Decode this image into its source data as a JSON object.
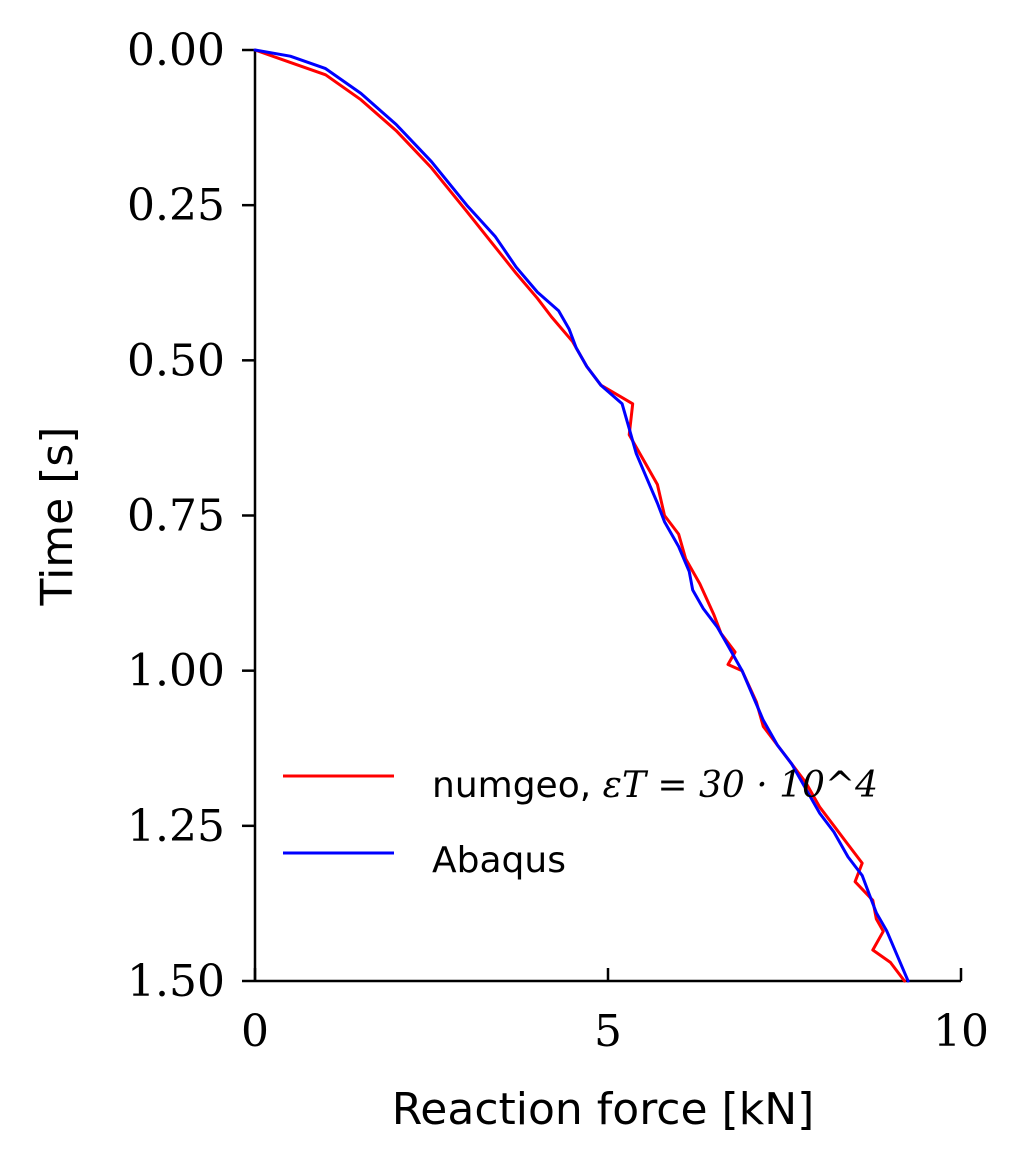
{
  "chart_data": {
    "type": "line",
    "xlabel": "Reaction force [kN]",
    "ylabel": "Time [s]",
    "xlim": [
      0,
      10
    ],
    "ylim": [
      0,
      1.5
    ],
    "y_inverted": true,
    "grid": false,
    "legend_position": "lower-left",
    "x_ticks": [
      "0",
      "5",
      "10"
    ],
    "y_ticks": [
      "0.00",
      "0.25",
      "0.50",
      "0.75",
      "1.00",
      "1.25",
      "1.50"
    ],
    "x_tick_values": [
      0,
      5,
      10
    ],
    "y_tick_values": [
      0,
      0.25,
      0.5,
      0.75,
      1.0,
      1.25,
      1.5
    ],
    "series": [
      {
        "name": "numgeo, εT = 30 · 10^4",
        "name_prefix": "numgeo, ",
        "name_math": "εT = 30 · 10^4",
        "color": "#ff0000",
        "x": [
          0.0,
          0.5,
          1.0,
          1.5,
          2.0,
          2.5,
          3.0,
          3.35,
          3.7,
          4.0,
          4.2,
          4.5,
          4.7,
          4.9,
          5.2,
          5.35,
          5.3,
          5.5,
          5.7,
          5.8,
          6.0,
          6.1,
          6.3,
          6.5,
          6.6,
          6.8,
          6.7,
          6.9,
          7.1,
          7.2,
          7.4,
          7.6,
          7.8,
          8.0,
          8.2,
          8.4,
          8.6,
          8.5,
          8.75,
          8.8,
          8.9,
          8.75,
          9.0,
          9.2
        ],
        "y": [
          0.0,
          0.02,
          0.04,
          0.08,
          0.13,
          0.19,
          0.26,
          0.31,
          0.36,
          0.4,
          0.43,
          0.47,
          0.51,
          0.54,
          0.56,
          0.57,
          0.62,
          0.66,
          0.7,
          0.75,
          0.78,
          0.82,
          0.86,
          0.91,
          0.94,
          0.97,
          0.99,
          1.0,
          1.05,
          1.09,
          1.12,
          1.15,
          1.18,
          1.22,
          1.25,
          1.28,
          1.31,
          1.34,
          1.37,
          1.4,
          1.42,
          1.45,
          1.47,
          1.5
        ]
      },
      {
        "name": "Abaqus",
        "color": "#0000ff",
        "x": [
          0.0,
          0.5,
          1.0,
          1.5,
          2.0,
          2.5,
          3.0,
          3.4,
          3.7,
          4.0,
          4.3,
          4.45,
          4.55,
          4.7,
          4.9,
          5.2,
          5.3,
          5.4,
          5.55,
          5.7,
          5.8,
          6.0,
          6.15,
          6.2,
          6.35,
          6.55,
          6.7,
          6.9,
          7.05,
          7.2,
          7.4,
          7.6,
          7.8,
          8.0,
          8.2,
          8.4,
          8.6,
          8.7,
          8.8,
          8.95,
          9.1,
          9.25
        ],
        "y": [
          0.0,
          0.01,
          0.03,
          0.07,
          0.12,
          0.18,
          0.25,
          0.3,
          0.35,
          0.39,
          0.42,
          0.45,
          0.48,
          0.51,
          0.54,
          0.57,
          0.61,
          0.65,
          0.69,
          0.73,
          0.76,
          0.8,
          0.84,
          0.87,
          0.9,
          0.93,
          0.96,
          1.0,
          1.04,
          1.08,
          1.12,
          1.15,
          1.19,
          1.23,
          1.26,
          1.3,
          1.33,
          1.36,
          1.39,
          1.42,
          1.46,
          1.5
        ]
      }
    ]
  }
}
